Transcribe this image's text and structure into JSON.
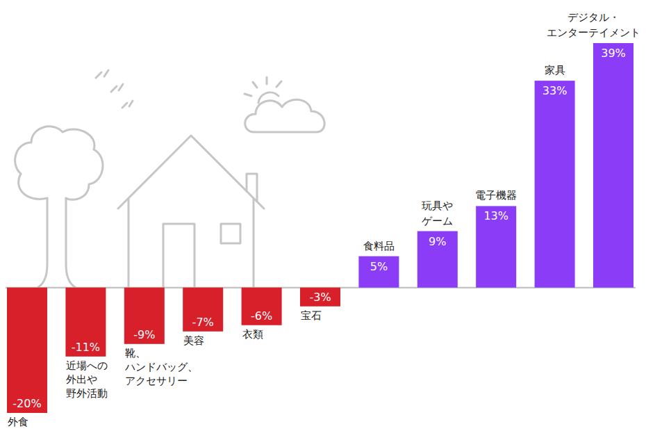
{
  "chart_data": {
    "type": "bar",
    "categories": [
      "外食",
      "近場への外出や野外活動",
      "靴、ハンドバッグ、アクセサリー",
      "美容",
      "衣類",
      "宝石",
      "食料品",
      "玩具やゲーム",
      "電子機器",
      "家具",
      "デジタル・エンターテイメント"
    ],
    "values": [
      -20,
      -11,
      -9,
      -7,
      -6,
      -3,
      5,
      9,
      13,
      33,
      39
    ],
    "value_labels": [
      "-20%",
      "-11%",
      "-9%",
      "-7%",
      "-6%",
      "-3%",
      "5%",
      "9%",
      "13%",
      "33%",
      "39%"
    ],
    "colors": [
      "#d8202b",
      "#d8202b",
      "#d8202b",
      "#d8202b",
      "#d8202b",
      "#d8202b",
      "#8b3cf6",
      "#8b3cf6",
      "#8b3cf6",
      "#8b3cf6",
      "#8b3cf6"
    ],
    "ylim": [
      -20,
      39
    ],
    "data_labels": true,
    "tick_labels": false,
    "grid": false
  }
}
